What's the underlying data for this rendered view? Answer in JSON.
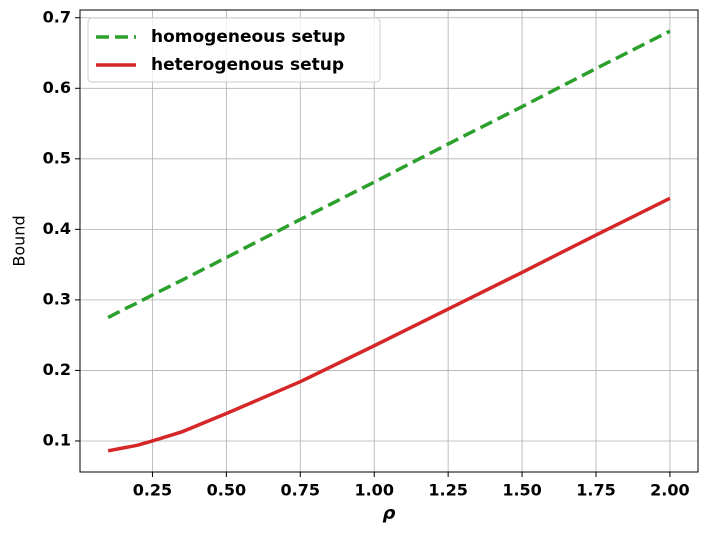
{
  "chart_data": {
    "type": "line",
    "xlabel": "ρ",
    "ylabel": "Bound",
    "x": [
      0.1,
      0.15,
      0.2,
      0.25,
      0.35,
      0.5,
      0.75,
      1.0,
      1.25,
      1.5,
      1.75,
      2.0
    ],
    "series": [
      {
        "name": "homogeneous setup",
        "color": "#2ca02c",
        "style": "dashed",
        "values": [
          0.275,
          0.286,
          0.296,
          0.307,
          0.328,
          0.36,
          0.414,
          0.467,
          0.521,
          0.574,
          0.628,
          0.681
        ]
      },
      {
        "name": "heterogenous setup",
        "color": "#d62728",
        "style": "solid",
        "values": [
          0.086,
          0.09,
          0.094,
          0.1,
          0.113,
          0.139,
          0.184,
          0.235,
          0.287,
          0.339,
          0.392,
          0.444
        ]
      }
    ],
    "xlim": [
      0.005,
      2.095
    ],
    "ylim": [
      0.056,
      0.711
    ],
    "xticks": [
      0.25,
      {
        "value": 0.5,
        "label": "0.50"
      },
      0.75,
      {
        "value": 1.0,
        "label": "1.00"
      },
      1.25,
      {
        "value": 1.5,
        "label": "1.50"
      },
      1.75,
      {
        "value": 2.0,
        "label": "2.00"
      }
    ],
    "yticks": [
      0.1,
      0.2,
      0.3,
      0.4,
      0.5,
      0.6,
      0.7
    ],
    "grid": true,
    "legend": "upper left"
  }
}
